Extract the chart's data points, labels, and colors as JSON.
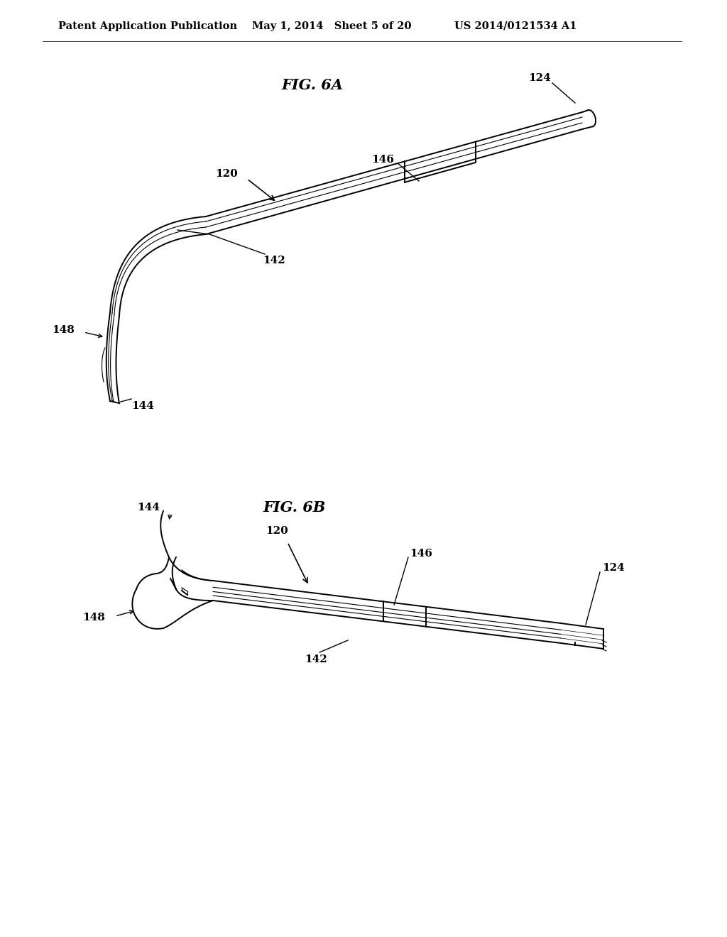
{
  "bg_color": "#ffffff",
  "header_left": "Patent Application Publication",
  "header_mid": "May 1, 2014   Sheet 5 of 20",
  "header_right": "US 2014/0121534 A1",
  "fig6a_title": "FIG. 6A",
  "fig6b_title": "FIG. 6B",
  "line_color": "#000000",
  "line_width": 1.4,
  "lw_thin": 0.8,
  "lw_thick": 2.0
}
